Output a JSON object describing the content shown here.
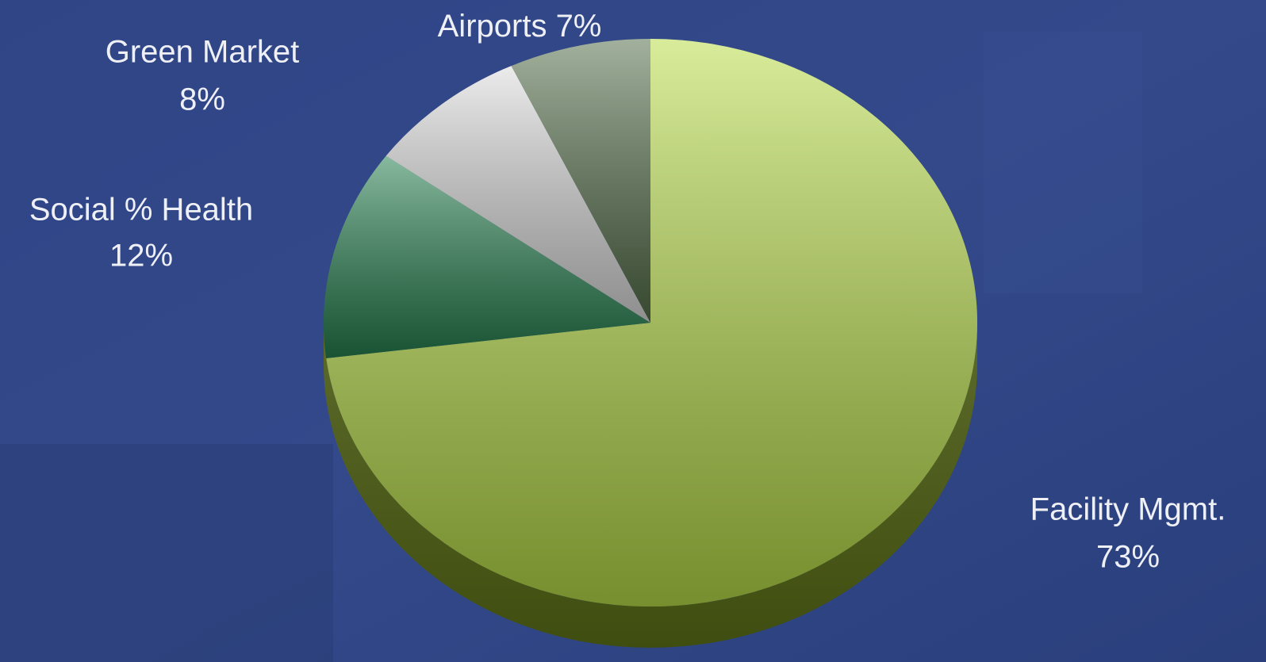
{
  "chart_data": {
    "type": "pie",
    "categories": [
      "Facility Mgmt.",
      "Social % Health",
      "Green Market",
      "Airports"
    ],
    "values": [
      73,
      12,
      8,
      7
    ],
    "value_labels": [
      "73%",
      "12%",
      "8%",
      "7%"
    ],
    "colors": [
      "#b8dc48",
      "#268050",
      "#dcdcdc",
      "#56704c"
    ]
  }
}
